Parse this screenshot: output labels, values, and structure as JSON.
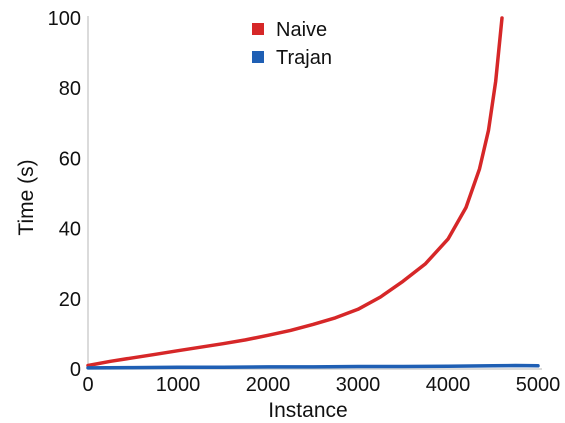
{
  "chart_data": {
    "type": "line",
    "title": "",
    "xlabel": "Instance",
    "ylabel": "Time (s)",
    "xlim": [
      0,
      5000
    ],
    "ylim": [
      0,
      100
    ],
    "xticks": [
      0,
      1000,
      2000,
      3000,
      4000,
      5000
    ],
    "yticks": [
      0,
      20,
      40,
      60,
      80,
      100
    ],
    "grid": false,
    "legend_position": "top-center",
    "series": [
      {
        "name": "Naive",
        "color": "#d62728",
        "x": [
          0,
          250,
          500,
          750,
          1000,
          1250,
          1500,
          1750,
          2000,
          2250,
          2500,
          2750,
          3000,
          3250,
          3500,
          3750,
          4000,
          4200,
          4350,
          4450,
          4530,
          4600
        ],
        "y": [
          1.0,
          2.2,
          3.2,
          4.2,
          5.2,
          6.2,
          7.2,
          8.3,
          9.6,
          11.0,
          12.7,
          14.6,
          17.0,
          20.5,
          25.0,
          30.0,
          37.0,
          46.0,
          57.0,
          68.0,
          82.0,
          100.0
        ]
      },
      {
        "name": "Trajan",
        "color": "#1f5fb4",
        "x": [
          0,
          500,
          1000,
          1500,
          2000,
          2500,
          3000,
          3500,
          4000,
          4500,
          4750,
          5000
        ],
        "y": [
          0.3,
          0.4,
          0.5,
          0.5,
          0.6,
          0.6,
          0.7,
          0.7,
          0.8,
          0.9,
          1.0,
          0.9
        ]
      }
    ]
  }
}
